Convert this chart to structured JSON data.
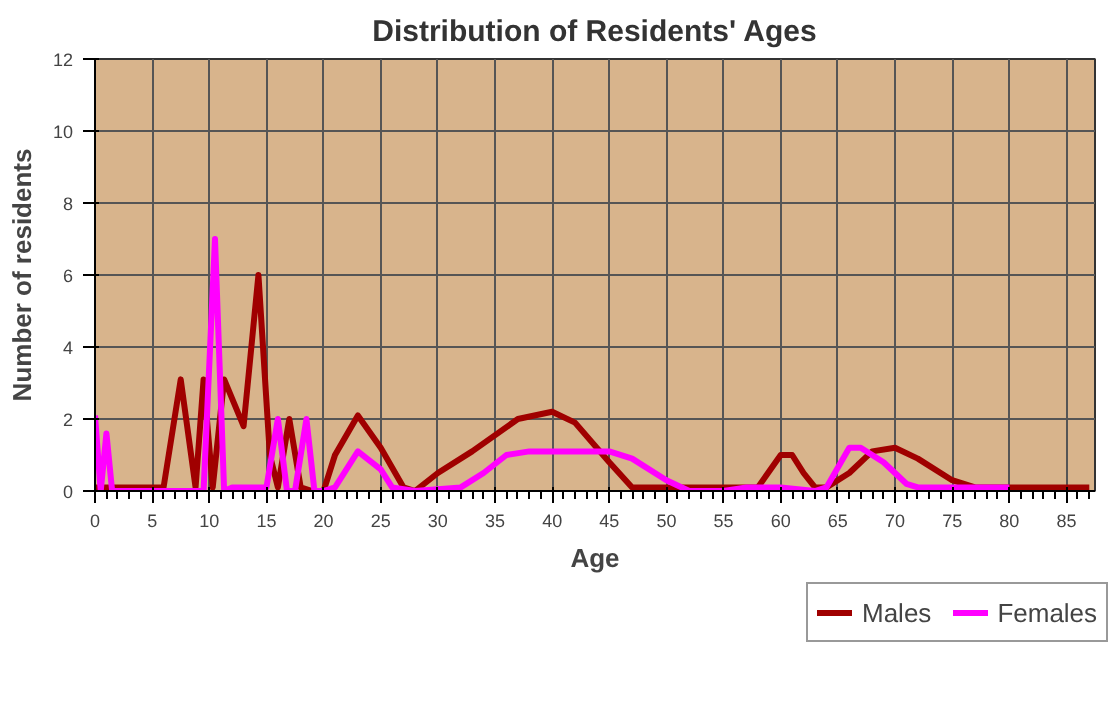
{
  "chart_data": {
    "type": "line",
    "title": "Distribution of Residents' Ages",
    "xlabel": "Age",
    "ylabel": "Number of residents",
    "xlim": [
      0,
      87.5
    ],
    "xticks": [
      0,
      5,
      10,
      15,
      20,
      25,
      30,
      35,
      40,
      45,
      50,
      55,
      60,
      65,
      70,
      75,
      80,
      85
    ],
    "ylim": [
      0,
      12
    ],
    "yticks": [
      0,
      2,
      4,
      6,
      8,
      10,
      12
    ],
    "grid": true,
    "legend": "bottom right",
    "marker": "none",
    "line_style": "solid",
    "series": [
      {
        "name": "Males",
        "color": "#a00000",
        "x": [
          0,
          5,
          6,
          7.5,
          8.8,
          9.5,
          10.3,
          11.3,
          13,
          14.3,
          15.3,
          16,
          17,
          18,
          19,
          20,
          21,
          23,
          25,
          27,
          28,
          30,
          33,
          37,
          40,
          42,
          45,
          47,
          50,
          55,
          58,
          60,
          61,
          62,
          63,
          64,
          66,
          68,
          70,
          72,
          75,
          77,
          80,
          87
        ],
        "values": [
          0.1,
          0.1,
          0.1,
          3.1,
          0.1,
          3.1,
          0.1,
          3.1,
          1.8,
          6,
          1,
          0.1,
          2,
          0.1,
          0,
          0,
          1,
          2.1,
          1.2,
          0.1,
          0,
          0.5,
          1.1,
          2,
          2.2,
          1.9,
          0.8,
          0.1,
          0.1,
          0.1,
          0.1,
          1,
          1,
          0.5,
          0.1,
          0.1,
          0.5,
          1.1,
          1.2,
          0.9,
          0.3,
          0.1,
          0.1,
          0.1
        ]
      },
      {
        "name": "Females",
        "color": "#ff00ff",
        "x": [
          0,
          0.5,
          1,
          1.5,
          2,
          9.5,
          10.5,
          11.3,
          12,
          15,
          16,
          16.8,
          17.5,
          18.5,
          19.2,
          20,
          21,
          23,
          25,
          26,
          28,
          32,
          34,
          36,
          38,
          42,
          45,
          47,
          50,
          52,
          55,
          57,
          60,
          63,
          64,
          66,
          67,
          69,
          71,
          72,
          80
        ],
        "values": [
          2.1,
          0,
          1.6,
          0,
          0,
          0,
          7,
          0,
          0.1,
          0.1,
          2,
          0,
          0,
          2,
          0,
          0,
          0.1,
          1.1,
          0.6,
          0.1,
          0,
          0.1,
          0.5,
          1,
          1.1,
          1.1,
          1.1,
          0.9,
          0.3,
          0,
          0,
          0.1,
          0.1,
          0,
          0.1,
          1.2,
          1.2,
          0.8,
          0.2,
          0.1,
          0.1
        ]
      }
    ]
  }
}
